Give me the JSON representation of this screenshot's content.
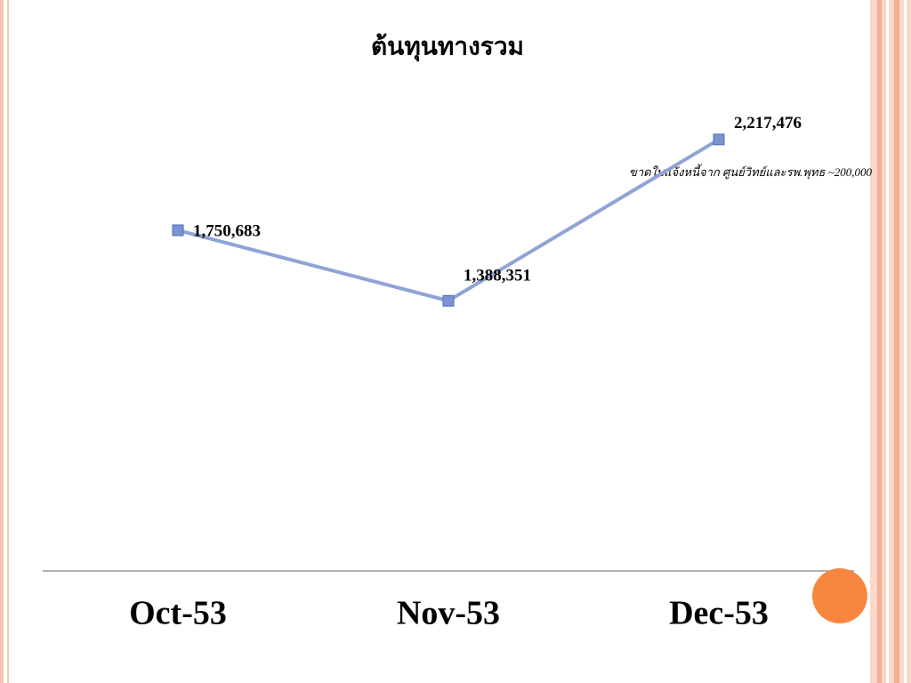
{
  "chart_data": {
    "type": "line",
    "title": "ต้นทุนทางรวม",
    "categories": [
      "Oct-53",
      "Nov-53",
      "Dec-53"
    ],
    "values": [
      1750683,
      1388351,
      2217476
    ],
    "value_labels": [
      "1,750,683",
      "1,388,351",
      "2,217,476"
    ],
    "color": "#8fa3d6",
    "annotation": "ขาดใบแจ้งหนี้จาก ศูนย์วิทย์และรพ.พุทธ ~200,000",
    "ylim": [
      0,
      2500000
    ]
  }
}
